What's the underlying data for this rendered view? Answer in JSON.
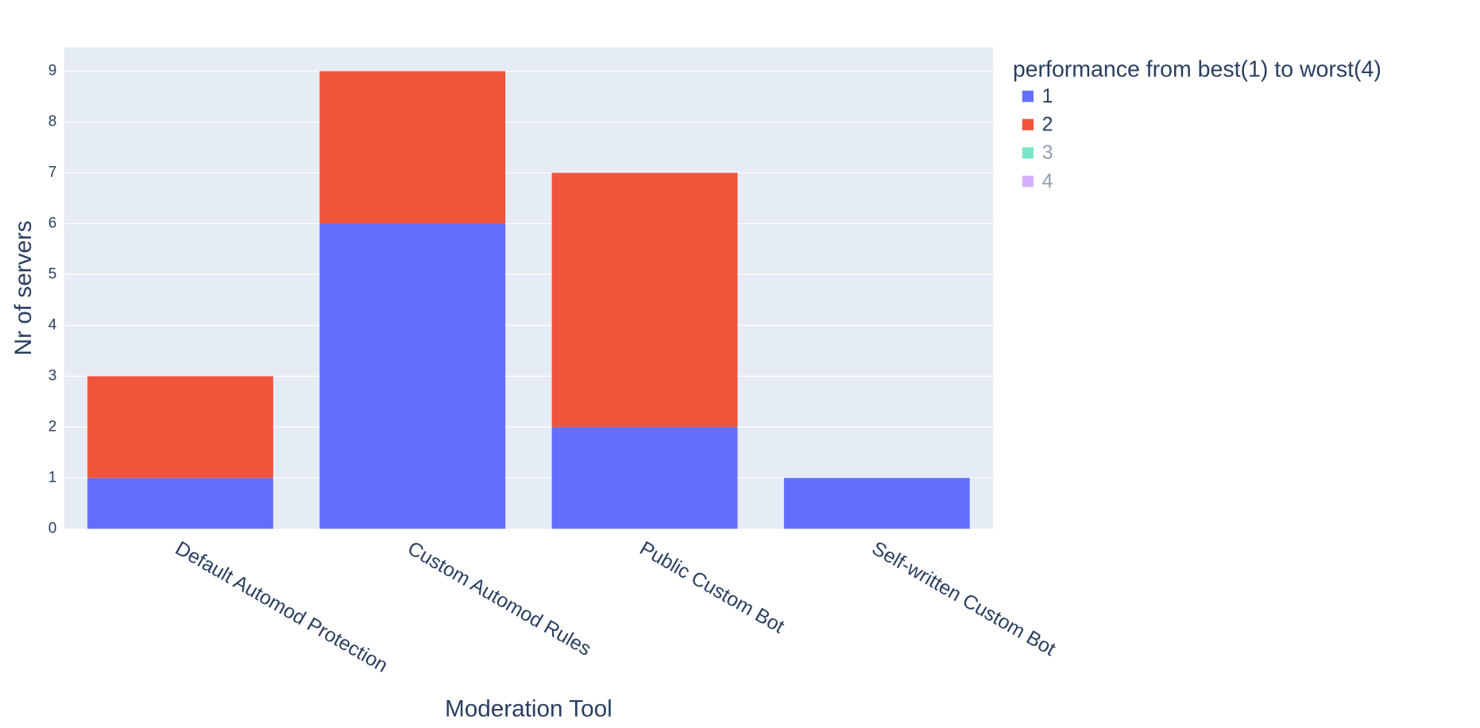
{
  "chart_data": {
    "type": "stacked_bar",
    "categories": [
      "Default Automod Protection",
      "Custom Automod Rules",
      "Public Custom Bot",
      "Self-written Custom Bot"
    ],
    "series": [
      {
        "name": "1",
        "color": "#636efa",
        "values": [
          1,
          6,
          2,
          1
        ]
      },
      {
        "name": "2",
        "color": "#ef553b",
        "values": [
          2,
          3,
          5,
          0
        ]
      },
      {
        "name": "3",
        "color": "#00cc96",
        "visible": "legendonly"
      },
      {
        "name": "4",
        "color": "#ab63fa",
        "visible": "legendonly"
      }
    ],
    "xlabel": "Moderation Tool",
    "ylabel": "Nr of servers",
    "legend_title": "performance from best(1) to worst(4)",
    "ylim": [
      0,
      9.47
    ],
    "yticks": [
      0,
      1,
      2,
      3,
      4,
      5,
      6,
      7,
      8,
      9
    ],
    "grid": true
  }
}
